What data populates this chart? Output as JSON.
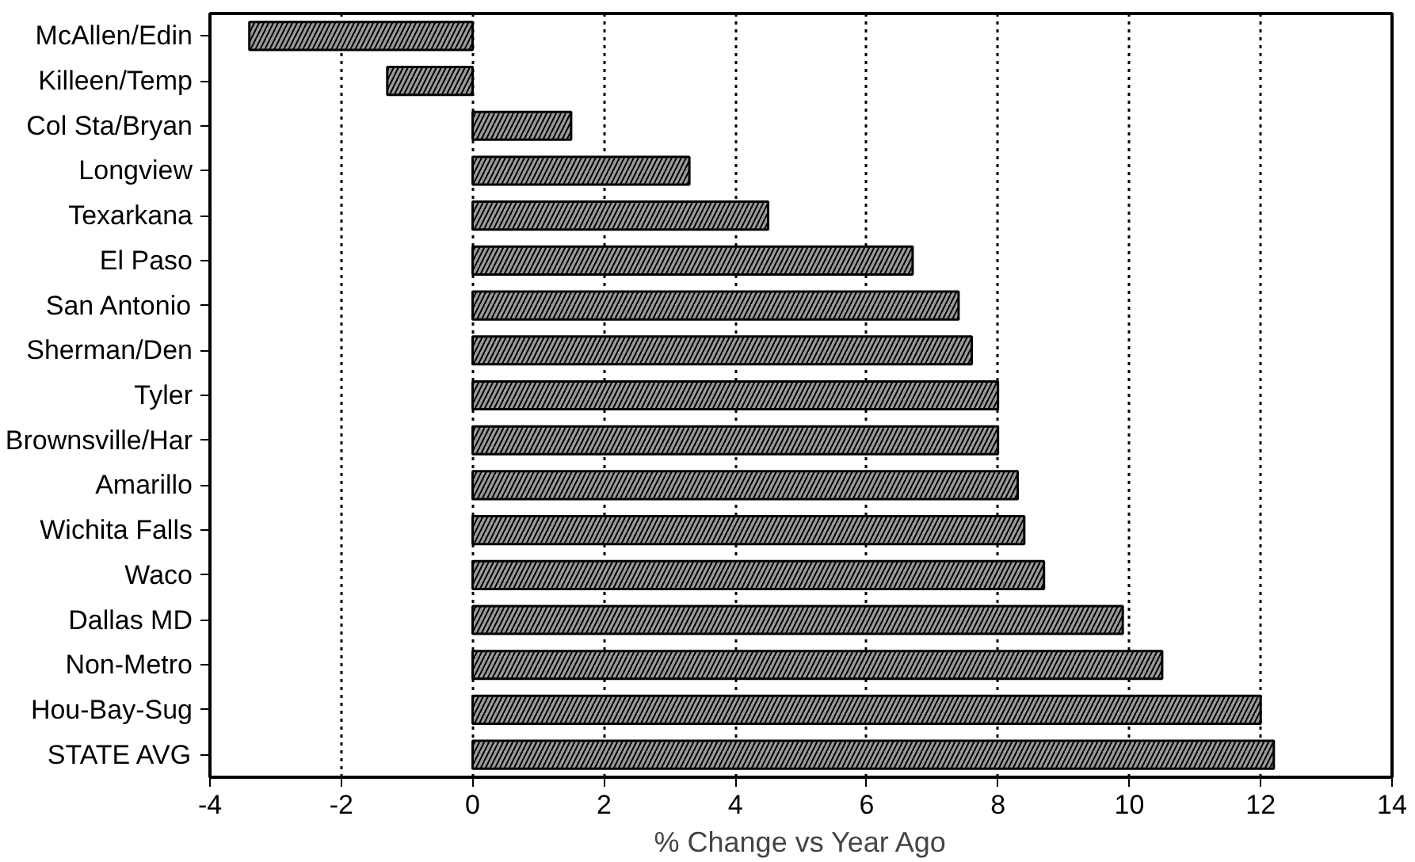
{
  "chart_data": {
    "type": "bar",
    "orientation": "horizontal",
    "xlabel": "% Change vs Year Ago",
    "categories": [
      "McAllen/Edin",
      "Killeen/Temp",
      "Col Sta/Bryan",
      "Longview",
      "Texarkana",
      "El Paso",
      "San Antonio",
      "Sherman/Den",
      "Tyler",
      "Brownsville/Har",
      "Amarillo",
      "Wichita Falls",
      "Waco",
      "Dallas MD",
      "Non-Metro",
      "Hou-Bay-Sug",
      "STATE AVG"
    ],
    "values": [
      -3.4,
      -1.3,
      1.5,
      3.3,
      4.5,
      6.7,
      7.4,
      7.6,
      8.0,
      8.0,
      8.3,
      8.4,
      8.7,
      9.9,
      10.5,
      12.0,
      12.2
    ],
    "color": "#9a9a9a",
    "xlim": [
      -4,
      14
    ],
    "xticks": [
      -4,
      -2,
      0,
      2,
      4,
      6,
      8,
      10,
      12,
      14
    ],
    "grid": "x"
  }
}
